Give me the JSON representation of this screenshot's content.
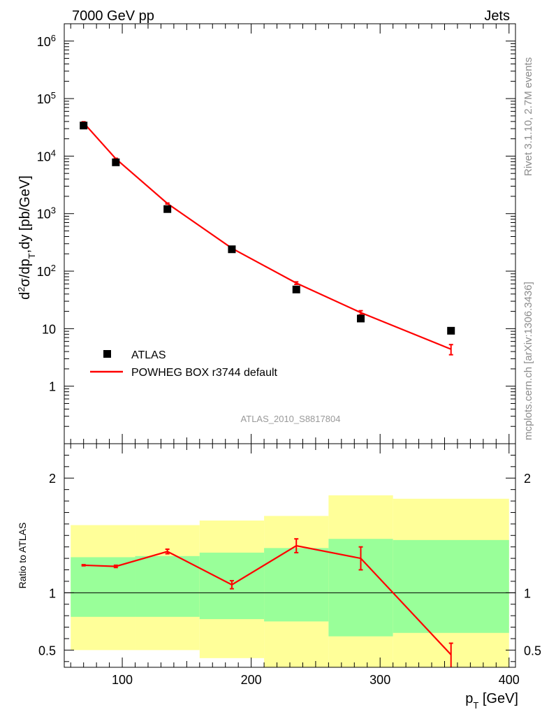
{
  "header": {
    "left": "7000 GeV pp",
    "right": "Jets"
  },
  "side_labels": {
    "rivet": "Rivet 3.1.10,  2.7M events",
    "mcplots": "mcplots.cern.ch [arXiv:1306.3436]"
  },
  "watermark": "ATLAS_2010_S8817804",
  "chart_data": [
    {
      "type": "line",
      "panel": "main",
      "y_scale": "log",
      "ylabel": "d²σ/dp_T,dy [pb/GeV]",
      "xlim": [
        55,
        405
      ],
      "ylim": [
        0.1,
        2000000
      ],
      "y_ticks": [
        {
          "v": 1000000,
          "base": "10",
          "exp": "6"
        },
        {
          "v": 100000,
          "base": "10",
          "exp": "5"
        },
        {
          "v": 10000,
          "base": "10",
          "exp": "4"
        },
        {
          "v": 1000,
          "base": "10",
          "exp": "3"
        },
        {
          "v": 100,
          "base": "10",
          "exp": "2"
        },
        {
          "v": 10,
          "base": "10",
          "exp": ""
        },
        {
          "v": 1,
          "base": "1",
          "exp": ""
        }
      ],
      "series": [
        {
          "name": "ATLAS",
          "marker": "square",
          "color": "#000000",
          "x": [
            70,
            95,
            135,
            185,
            235,
            285,
            355
          ],
          "y": [
            34000,
            7800,
            1200,
            240,
            48,
            15,
            9.2
          ]
        },
        {
          "name": "POWHEG BOX r3744 default",
          "marker": "line",
          "color": "#ff0000",
          "x": [
            70,
            95,
            135,
            185,
            235,
            285,
            355
          ],
          "y": [
            38000,
            9000,
            1500,
            250,
            62,
            19,
            4.4
          ],
          "err": [
            0.04,
            0.02,
            0.02,
            0.02,
            0.05,
            0.08,
            0.2
          ]
        }
      ],
      "legend": "bottom-left"
    },
    {
      "type": "line",
      "panel": "ratio",
      "ylabel": "Ratio to ATLAS",
      "xlabel": "p_T [GeV]",
      "xlim": [
        55,
        405
      ],
      "ylim": [
        0.35,
        2.3
      ],
      "x_ticks": [
        100,
        200,
        300,
        400
      ],
      "y_ticks": [
        0.5,
        1,
        2
      ],
      "bands": {
        "edges": [
          60,
          110,
          160,
          210,
          260,
          310,
          400
        ],
        "yellow_low": [
          0.5,
          0.5,
          0.43,
          0.35,
          0.35,
          0.35
        ],
        "yellow_high": [
          1.59,
          1.59,
          1.63,
          1.67,
          1.85,
          1.82
        ],
        "green_low": [
          0.79,
          0.79,
          0.77,
          0.75,
          0.62,
          0.65
        ],
        "green_high": [
          1.31,
          1.32,
          1.35,
          1.39,
          1.47,
          1.46
        ]
      },
      "series": [
        {
          "name": "POWHEG BOX r3744 default",
          "color": "#ff0000",
          "x": [
            70,
            95,
            135,
            185,
            235,
            285,
            355
          ],
          "y": [
            1.24,
            1.23,
            1.36,
            1.07,
            1.41,
            1.3,
            0.46
          ],
          "err": [
            0.005,
            0.01,
            0.02,
            0.035,
            0.06,
            0.1,
            0.1
          ]
        }
      ]
    }
  ]
}
